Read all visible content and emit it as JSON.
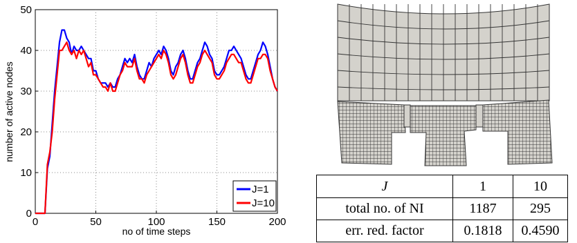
{
  "chart_data": {
    "type": "line",
    "xlabel": "no of time steps",
    "ylabel": "number of active nodes",
    "xlim": [
      0,
      200
    ],
    "ylim": [
      0,
      50
    ],
    "xticks": [
      "0",
      "50",
      "100",
      "150",
      "200"
    ],
    "yticks": [
      "0",
      "10",
      "20",
      "30",
      "40",
      "50"
    ],
    "grid": true,
    "legend": "bottom-right",
    "series": [
      {
        "name": "J=1",
        "color": "#0000ff",
        "x": [
          0,
          8,
          10,
          12,
          14,
          16,
          18,
          20,
          22,
          24,
          26,
          28,
          30,
          32,
          34,
          36,
          38,
          40,
          42,
          44,
          46,
          48,
          50,
          52,
          54,
          56,
          58,
          60,
          62,
          64,
          66,
          68,
          70,
          72,
          74,
          76,
          78,
          80,
          82,
          84,
          86,
          88,
          90,
          92,
          94,
          96,
          98,
          100,
          102,
          104,
          106,
          108,
          110,
          112,
          114,
          116,
          118,
          120,
          122,
          124,
          126,
          128,
          130,
          132,
          134,
          136,
          138,
          140,
          142,
          144,
          146,
          148,
          150,
          152,
          154,
          156,
          158,
          160,
          162,
          164,
          166,
          168,
          170,
          172,
          174,
          176,
          178,
          180,
          182,
          184,
          186,
          188,
          190,
          192,
          194,
          196,
          198,
          200
        ],
        "y": [
          0,
          0,
          11,
          14,
          22,
          30,
          36,
          42,
          45,
          45,
          43,
          42,
          39,
          41,
          40,
          40,
          41,
          40,
          39,
          38,
          38,
          35,
          35,
          33,
          32,
          32,
          32,
          31,
          32,
          31,
          31,
          33,
          34,
          36,
          38,
          37,
          38,
          37,
          39,
          36,
          34,
          33,
          33,
          35,
          37,
          36,
          38,
          39,
          40,
          39,
          41,
          40,
          38,
          35,
          34,
          36,
          37,
          39,
          40,
          38,
          35,
          33,
          33,
          35,
          37,
          38,
          40,
          42,
          41,
          39,
          38,
          35,
          34,
          34,
          35,
          36,
          38,
          40,
          40,
          41,
          40,
          39,
          38,
          36,
          34,
          33,
          33,
          35,
          37,
          39,
          40,
          42,
          41,
          39,
          36,
          33,
          31,
          30
        ]
      },
      {
        "name": "J=10",
        "color": "#ff0000",
        "x": [
          0,
          8,
          10,
          12,
          14,
          16,
          18,
          20,
          22,
          24,
          26,
          28,
          30,
          32,
          34,
          36,
          38,
          40,
          42,
          44,
          46,
          48,
          50,
          52,
          54,
          56,
          58,
          60,
          62,
          64,
          66,
          68,
          70,
          72,
          74,
          76,
          78,
          80,
          82,
          84,
          86,
          88,
          90,
          92,
          94,
          96,
          98,
          100,
          102,
          104,
          106,
          108,
          110,
          112,
          114,
          116,
          118,
          120,
          122,
          124,
          126,
          128,
          130,
          132,
          134,
          136,
          138,
          140,
          142,
          144,
          146,
          148,
          150,
          152,
          154,
          156,
          158,
          160,
          162,
          164,
          166,
          168,
          170,
          172,
          174,
          176,
          178,
          180,
          182,
          184,
          186,
          188,
          190,
          192,
          194,
          196,
          198,
          200
        ],
        "y": [
          0,
          0,
          12,
          15,
          20,
          28,
          34,
          40,
          40,
          41,
          42,
          40,
          39,
          40,
          38,
          40,
          39,
          40,
          38,
          36,
          37,
          34,
          34,
          33,
          32,
          31,
          31,
          30,
          32,
          30,
          30,
          32,
          34,
          35,
          37,
          36,
          36,
          36,
          38,
          35,
          33,
          33,
          32,
          34,
          35,
          36,
          37,
          38,
          39,
          38,
          40,
          39,
          37,
          34,
          33,
          34,
          36,
          38,
          39,
          37,
          34,
          32,
          32,
          34,
          36,
          37,
          39,
          40,
          39,
          38,
          37,
          34,
          33,
          33,
          34,
          35,
          37,
          38,
          39,
          39,
          38,
          37,
          37,
          35,
          33,
          32,
          32,
          34,
          36,
          38,
          38,
          39,
          39,
          38,
          35,
          33,
          31,
          30
        ]
      }
    ]
  },
  "table": {
    "header": [
      "J",
      "1",
      "10"
    ],
    "rows": [
      [
        "total no. of NI",
        "1187",
        "295"
      ],
      [
        "err. red. factor",
        "0.1818",
        "0.4590"
      ]
    ]
  }
}
